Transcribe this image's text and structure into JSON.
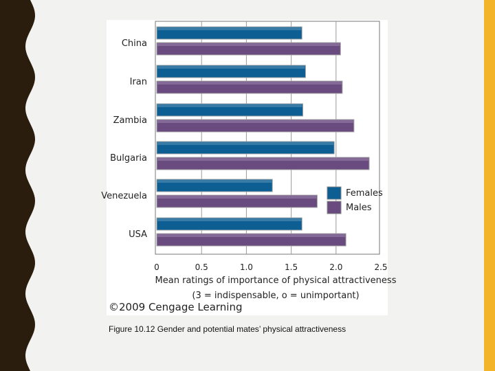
{
  "caption": "Figure 10.12  Gender and potential mates’ physical attractiveness",
  "credit": "©2009 Cengage Learning",
  "colors": {
    "females": "#0d5f93",
    "males": "#6a4b80",
    "border": "#f3b429",
    "wave": "#2b1d0e"
  },
  "chart_data": {
    "type": "bar",
    "orientation": "horizontal",
    "categories": [
      "China",
      "Iran",
      "Zambia",
      "Bulgaria",
      "Venezuela",
      "USA"
    ],
    "series": [
      {
        "name": "Females",
        "values": [
          1.62,
          1.66,
          1.63,
          1.98,
          1.29,
          1.62
        ]
      },
      {
        "name": "Males",
        "values": [
          2.05,
          2.07,
          2.2,
          2.37,
          1.79,
          2.11
        ]
      }
    ],
    "xlim": [
      0,
      2.5
    ],
    "xticks": [
      "0",
      "0.5",
      "1.0",
      "1.5",
      "2.0",
      "2.5"
    ],
    "xlabel_line1": "Mean ratings of importance of physical attractiveness",
    "xlabel_line2": "(3 = indispensable, o = unimportant)",
    "grid": true,
    "legend_position": "right"
  }
}
